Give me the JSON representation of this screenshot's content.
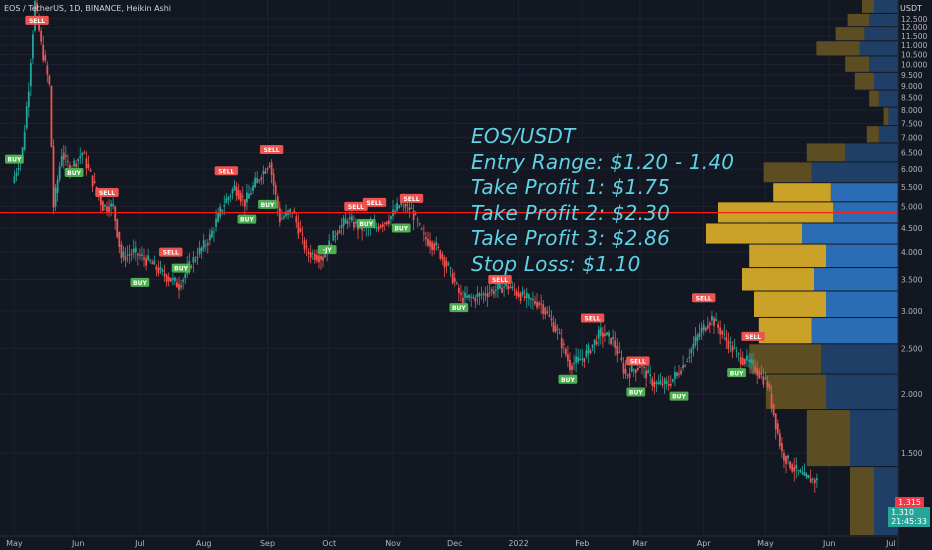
{
  "header": {
    "symbol_line": "EOS / TetherUS, 1D, BINANCE, Heikin Ashi"
  },
  "price_axis": {
    "unit": "USDT"
  },
  "signal": {
    "title": "EOS/USDT",
    "entry": "Entry Range: $1.20 - 1.40",
    "tp1": "Take Profit 1: $1.75",
    "tp2": "Take Profit 2: $2.30",
    "tp3": "Take Profit 3: $2.86",
    "sl": "Stop Loss: $1.10"
  },
  "price_tags": {
    "red": "1.315",
    "green_price": "1.310",
    "green_time": "21:45:33"
  },
  "colors": {
    "background": "#131722",
    "up": "#26a69a",
    "down": "#ef5350",
    "horizontal_line": "#ff1a1a",
    "profile_volume_a": "#c9a227",
    "profile_volume_b": "#2a6db5",
    "signal_text": "#5fd3e6",
    "sell_label": "#ef5350",
    "buy_label": "#4caf50"
  },
  "chart_data": {
    "type": "candlestick",
    "title": "EOS / TetherUS, 1D, BINANCE, Heikin Ashi",
    "y_axis": {
      "ticks": [
        "1.500",
        "2.000",
        "2.500",
        "3.000",
        "3.500",
        "4.000",
        "4.500",
        "5.000",
        "5.500",
        "6.000",
        "6.500",
        "7.000",
        "7.500",
        "8.000",
        "8.500",
        "9.000",
        "9.500",
        "10.000",
        "10.500",
        "11.000",
        "11.500",
        "12.000",
        "12.500"
      ],
      "range": [
        1.0,
        13.7
      ],
      "scale": "log"
    },
    "x_axis": {
      "ticks": [
        "May",
        "Jun",
        "Jul",
        "Aug",
        "Sep",
        "Oct",
        "Nov",
        "Dec",
        "2022",
        "Feb",
        "Mar",
        "Apr",
        "May",
        "Jun",
        "Jul"
      ],
      "tick_dates": [
        "2021-05-01",
        "2021-06-01",
        "2021-07-01",
        "2021-08-01",
        "2021-09-01",
        "2021-10-01",
        "2021-11-01",
        "2021-12-01",
        "2022-01-01",
        "2022-02-01",
        "2022-03-01",
        "2022-04-01",
        "2022-05-01",
        "2022-06-01",
        "2022-07-01"
      ]
    },
    "horizontal_line": 4.85,
    "price_path": [
      {
        "date": "2021-05-01",
        "price": 5.8
      },
      {
        "date": "2021-05-05",
        "price": 6.6
      },
      {
        "date": "2021-05-08",
        "price": 9.0
      },
      {
        "date": "2021-05-11",
        "price": 13.5
      },
      {
        "date": "2021-05-14",
        "price": 11.0
      },
      {
        "date": "2021-05-18",
        "price": 9.0
      },
      {
        "date": "2021-05-20",
        "price": 5.0
      },
      {
        "date": "2021-05-24",
        "price": 6.5
      },
      {
        "date": "2021-05-28",
        "price": 6.0
      },
      {
        "date": "2021-06-03",
        "price": 6.5
      },
      {
        "date": "2021-06-09",
        "price": 5.5
      },
      {
        "date": "2021-06-13",
        "price": 5.0
      },
      {
        "date": "2021-06-18",
        "price": 5.0
      },
      {
        "date": "2021-06-22",
        "price": 3.9
      },
      {
        "date": "2021-06-28",
        "price": 4.0
      },
      {
        "date": "2021-07-06",
        "price": 3.8
      },
      {
        "date": "2021-07-12",
        "price": 3.6
      },
      {
        "date": "2021-07-20",
        "price": 3.4
      },
      {
        "date": "2021-07-26",
        "price": 3.8
      },
      {
        "date": "2021-08-04",
        "price": 4.3
      },
      {
        "date": "2021-08-10",
        "price": 5.0
      },
      {
        "date": "2021-08-16",
        "price": 5.5
      },
      {
        "date": "2021-08-21",
        "price": 5.1
      },
      {
        "date": "2021-08-26",
        "price": 5.6
      },
      {
        "date": "2021-09-02",
        "price": 6.2
      },
      {
        "date": "2021-09-07",
        "price": 4.7
      },
      {
        "date": "2021-09-13",
        "price": 4.9
      },
      {
        "date": "2021-09-20",
        "price": 4.0
      },
      {
        "date": "2021-09-28",
        "price": 3.9
      },
      {
        "date": "2021-10-04",
        "price": 4.4
      },
      {
        "date": "2021-10-10",
        "price": 4.7
      },
      {
        "date": "2021-10-16",
        "price": 4.5
      },
      {
        "date": "2021-10-23",
        "price": 4.5
      },
      {
        "date": "2021-10-30",
        "price": 4.7
      },
      {
        "date": "2021-11-05",
        "price": 5.1
      },
      {
        "date": "2021-11-10",
        "price": 4.9
      },
      {
        "date": "2021-11-16",
        "price": 4.3
      },
      {
        "date": "2021-11-22",
        "price": 4.1
      },
      {
        "date": "2021-11-28",
        "price": 3.7
      },
      {
        "date": "2021-12-04",
        "price": 3.2
      },
      {
        "date": "2021-12-10",
        "price": 3.2
      },
      {
        "date": "2021-12-18",
        "price": 3.3
      },
      {
        "date": "2021-12-26",
        "price": 3.4
      },
      {
        "date": "2022-01-04",
        "price": 3.2
      },
      {
        "date": "2022-01-12",
        "price": 3.1
      },
      {
        "date": "2022-01-20",
        "price": 2.7
      },
      {
        "date": "2022-01-26",
        "price": 2.3
      },
      {
        "date": "2022-02-02",
        "price": 2.4
      },
      {
        "date": "2022-02-10",
        "price": 2.7
      },
      {
        "date": "2022-02-16",
        "price": 2.6
      },
      {
        "date": "2022-02-22",
        "price": 2.2
      },
      {
        "date": "2022-03-01",
        "price": 2.3
      },
      {
        "date": "2022-03-08",
        "price": 2.1
      },
      {
        "date": "2022-03-15",
        "price": 2.1
      },
      {
        "date": "2022-03-22",
        "price": 2.3
      },
      {
        "date": "2022-03-30",
        "price": 2.7
      },
      {
        "date": "2022-04-05",
        "price": 2.9
      },
      {
        "date": "2022-04-12",
        "price": 2.6
      },
      {
        "date": "2022-04-18",
        "price": 2.4
      },
      {
        "date": "2022-04-25",
        "price": 2.3
      },
      {
        "date": "2022-05-02",
        "price": 2.1
      },
      {
        "date": "2022-05-09",
        "price": 1.5
      },
      {
        "date": "2022-05-14",
        "price": 1.4
      },
      {
        "date": "2022-05-20",
        "price": 1.33
      },
      {
        "date": "2022-05-26",
        "price": 1.31
      }
    ],
    "signals": [
      {
        "date": "2021-05-12",
        "price": 12.4,
        "label": "SELL",
        "type": "sell"
      },
      {
        "date": "2021-05-01",
        "price": 6.3,
        "label": "BUY",
        "type": "buy"
      },
      {
        "date": "2021-05-30",
        "price": 5.9,
        "label": "BUY",
        "type": "buy"
      },
      {
        "date": "2021-06-15",
        "price": 5.35,
        "label": "SELL",
        "type": "sell"
      },
      {
        "date": "2021-07-01",
        "price": 3.45,
        "label": "BUY",
        "type": "buy"
      },
      {
        "date": "2021-07-16",
        "price": 4.0,
        "label": "SELL",
        "type": "sell"
      },
      {
        "date": "2021-07-21",
        "price": 3.7,
        "label": "BUY",
        "type": "buy"
      },
      {
        "date": "2021-08-12",
        "price": 5.95,
        "label": "SELL",
        "type": "sell"
      },
      {
        "date": "2021-08-22",
        "price": 4.7,
        "label": "BUY",
        "type": "buy"
      },
      {
        "date": "2021-09-01",
        "price": 5.05,
        "label": "BUY",
        "type": "buy"
      },
      {
        "date": "2021-09-03",
        "price": 6.6,
        "label": "SELL",
        "type": "sell"
      },
      {
        "date": "2021-09-30",
        "price": 4.05,
        "label": "-JY",
        "type": "buy"
      },
      {
        "date": "2021-10-14",
        "price": 5.0,
        "label": "SELL",
        "type": "sell"
      },
      {
        "date": "2021-10-23",
        "price": 5.1,
        "label": "SELL",
        "type": "sell"
      },
      {
        "date": "2021-10-19",
        "price": 4.6,
        "label": "BUY",
        "type": "buy"
      },
      {
        "date": "2021-11-05",
        "price": 4.5,
        "label": "BUY",
        "type": "buy"
      },
      {
        "date": "2021-11-10",
        "price": 5.2,
        "label": "SELL",
        "type": "sell"
      },
      {
        "date": "2021-12-03",
        "price": 3.05,
        "label": "BUY",
        "type": "buy"
      },
      {
        "date": "2021-12-23",
        "price": 3.5,
        "label": "SELL",
        "type": "sell"
      },
      {
        "date": "2022-01-25",
        "price": 2.15,
        "label": "BUY",
        "type": "buy"
      },
      {
        "date": "2022-02-06",
        "price": 2.9,
        "label": "SELL",
        "type": "sell"
      },
      {
        "date": "2022-02-28",
        "price": 2.35,
        "label": "SELL",
        "type": "sell"
      },
      {
        "date": "2022-02-27",
        "price": 2.02,
        "label": "BUY",
        "type": "buy"
      },
      {
        "date": "2022-03-20",
        "price": 1.98,
        "label": "BUY",
        "type": "buy"
      },
      {
        "date": "2022-04-01",
        "price": 3.2,
        "label": "SELL",
        "type": "sell"
      },
      {
        "date": "2022-04-17",
        "price": 2.22,
        "label": "BUY",
        "type": "buy"
      },
      {
        "date": "2022-04-25",
        "price": 2.65,
        "label": "SELL",
        "type": "sell"
      }
    ],
    "volume_profile": [
      {
        "price_low": 12.8,
        "price_high": 13.7,
        "a": 0.05,
        "b": 0.1,
        "level": "far"
      },
      {
        "price_low": 12.0,
        "price_high": 12.8,
        "a": 0.09,
        "b": 0.12,
        "level": "far"
      },
      {
        "price_low": 11.2,
        "price_high": 12.0,
        "a": 0.12,
        "b": 0.14,
        "level": "far"
      },
      {
        "price_low": 10.4,
        "price_high": 11.2,
        "a": 0.18,
        "b": 0.16,
        "level": "far"
      },
      {
        "price_low": 9.6,
        "price_high": 10.4,
        "a": 0.1,
        "b": 0.12,
        "level": "far"
      },
      {
        "price_low": 8.8,
        "price_high": 9.6,
        "a": 0.08,
        "b": 0.1,
        "level": "far"
      },
      {
        "price_low": 8.1,
        "price_high": 8.8,
        "a": 0.04,
        "b": 0.08,
        "level": "far"
      },
      {
        "price_low": 7.4,
        "price_high": 8.1,
        "a": 0.02,
        "b": 0.04,
        "level": "far"
      },
      {
        "price_low": 6.8,
        "price_high": 7.4,
        "a": 0.05,
        "b": 0.08,
        "level": "far"
      },
      {
        "price_low": 6.2,
        "price_high": 6.8,
        "a": 0.16,
        "b": 0.22,
        "level": "far"
      },
      {
        "price_low": 5.6,
        "price_high": 6.2,
        "a": 0.2,
        "b": 0.36,
        "level": "far"
      },
      {
        "price_low": 5.1,
        "price_high": 5.6,
        "a": 0.24,
        "b": 0.28,
        "level": "near"
      },
      {
        "price_low": 4.6,
        "price_high": 5.1,
        "a": 0.48,
        "b": 0.27,
        "level": "near"
      },
      {
        "price_low": 4.15,
        "price_high": 4.6,
        "a": 0.4,
        "b": 0.4,
        "level": "near"
      },
      {
        "price_low": 3.7,
        "price_high": 4.15,
        "a": 0.32,
        "b": 0.3,
        "level": "near"
      },
      {
        "price_low": 3.3,
        "price_high": 3.7,
        "a": 0.3,
        "b": 0.35,
        "level": "near"
      },
      {
        "price_low": 2.9,
        "price_high": 3.3,
        "a": 0.3,
        "b": 0.3,
        "level": "near"
      },
      {
        "price_low": 2.55,
        "price_high": 2.9,
        "a": 0.22,
        "b": 0.36,
        "level": "near"
      },
      {
        "price_low": 2.2,
        "price_high": 2.55,
        "a": 0.3,
        "b": 0.32,
        "level": "far"
      },
      {
        "price_low": 1.85,
        "price_high": 2.2,
        "a": 0.25,
        "b": 0.3,
        "level": "far"
      },
      {
        "price_low": 1.4,
        "price_high": 1.85,
        "a": 0.18,
        "b": 0.2,
        "level": "far"
      },
      {
        "price_low": 1.0,
        "price_high": 1.4,
        "a": 0.1,
        "b": 0.1,
        "level": "far"
      }
    ]
  }
}
